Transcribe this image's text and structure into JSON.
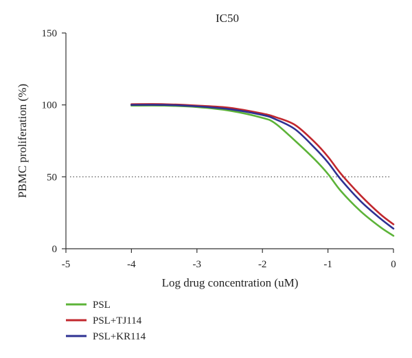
{
  "chart_data": {
    "type": "line",
    "title": "IC50",
    "xlabel": "Log drug concentration (uM)",
    "ylabel": "PBMC proliferation (%)",
    "xlim": [
      -5,
      0
    ],
    "ylim": [
      0,
      150
    ],
    "xticks": [
      -5,
      -4,
      -3,
      -2,
      -1,
      0
    ],
    "yticks": [
      0,
      50,
      100,
      150
    ],
    "reference_line": {
      "y": 50,
      "style": "dotted"
    },
    "legend_position": "bottom-left",
    "series": [
      {
        "name": "PSL",
        "color": "#5cb338",
        "x": [
          -4,
          -3.5,
          -3,
          -2.5,
          -2,
          -1.8,
          -1.5,
          -1.2,
          -1,
          -0.8,
          -0.5,
          -0.2,
          0
        ],
        "y": [
          99.5,
          99.5,
          98.5,
          96,
          91,
          87,
          75,
          62,
          52,
          40,
          26,
          15,
          9
        ]
      },
      {
        "name": "PSL+TJ114",
        "color": "#c1272d",
        "x": [
          -4,
          -3.5,
          -3,
          -2.5,
          -2,
          -1.8,
          -1.5,
          -1.2,
          -1,
          -0.8,
          -0.5,
          -0.2,
          0
        ],
        "y": [
          100.5,
          100.5,
          99.5,
          98,
          94,
          91.5,
          86,
          74,
          64,
          52,
          37,
          24,
          17
        ]
      },
      {
        "name": "PSL+KR114",
        "color": "#2e3192",
        "x": [
          -4,
          -3.5,
          -3,
          -2.5,
          -2,
          -1.8,
          -1.5,
          -1.2,
          -1,
          -0.8,
          -0.5,
          -0.2,
          0
        ],
        "y": [
          100,
          100,
          99,
          97,
          93,
          90,
          83,
          70,
          60,
          48,
          33,
          21,
          14
        ]
      }
    ]
  }
}
